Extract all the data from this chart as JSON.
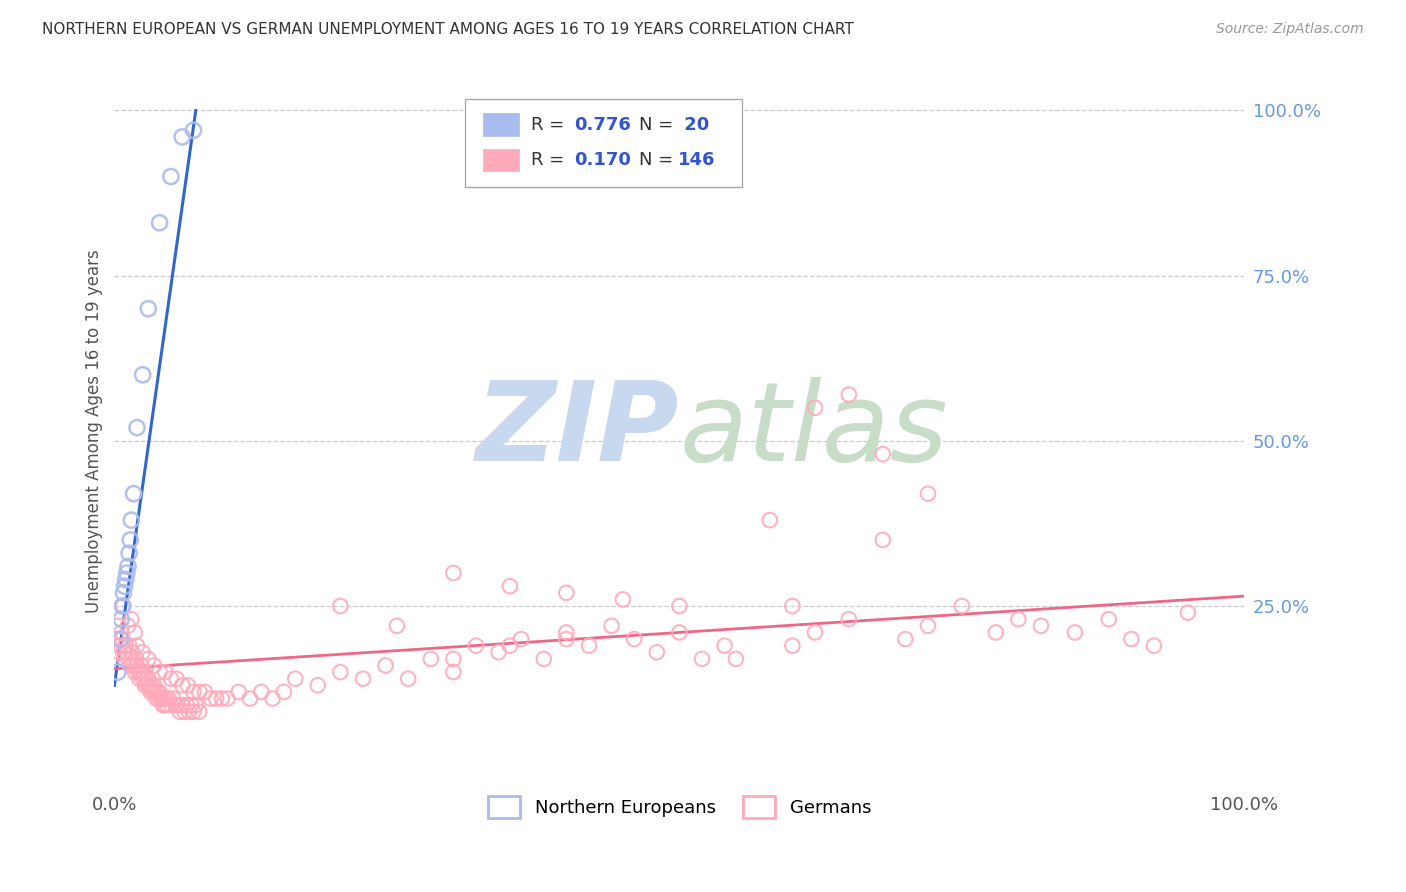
{
  "title": "NORTHERN EUROPEAN VS GERMAN UNEMPLOYMENT AMONG AGES 16 TO 19 YEARS CORRELATION CHART",
  "source": "Source: ZipAtlas.com",
  "ylabel": "Unemployment Among Ages 16 to 19 years",
  "xlim": [
    0,
    1
  ],
  "ylim": [
    -0.02,
    1.05
  ],
  "blue_scatter_color": "#aabbee",
  "blue_line_color": "#3366cc",
  "pink_scatter_color": "#ffaabb",
  "pink_line_color": "#ee6688",
  "grid_color": "#cccccc",
  "background_color": "#ffffff",
  "title_color": "#333333",
  "right_axis_color": "#6699dd",
  "legend_text_color": "#333333",
  "legend_value_color": "#3355cc",
  "watermark_zip_color": "#c8d8ee",
  "watermark_atlas_color": "#c8ddc8",
  "ne_x": [
    0.003,
    0.005,
    0.006,
    0.007,
    0.008,
    0.009,
    0.01,
    0.011,
    0.012,
    0.013,
    0.014,
    0.015,
    0.017,
    0.02,
    0.025,
    0.03,
    0.04,
    0.05,
    0.06,
    0.07
  ],
  "ne_y": [
    0.15,
    0.2,
    0.23,
    0.25,
    0.27,
    0.28,
    0.29,
    0.3,
    0.31,
    0.33,
    0.35,
    0.38,
    0.42,
    0.52,
    0.6,
    0.7,
    0.83,
    0.9,
    0.96,
    0.97
  ],
  "ne_trend_x": [
    0.0,
    0.072
  ],
  "ne_trend_y": [
    0.13,
    1.0
  ],
  "pink_trend_x": [
    0.0,
    1.0
  ],
  "pink_trend_y": [
    0.155,
    0.265
  ],
  "german_x_low": [
    0.002,
    0.003,
    0.004,
    0.005,
    0.006,
    0.007,
    0.008,
    0.009,
    0.01,
    0.011,
    0.012,
    0.013,
    0.014,
    0.015,
    0.016,
    0.017,
    0.018,
    0.019,
    0.02,
    0.021,
    0.022,
    0.023,
    0.024,
    0.025,
    0.026,
    0.027,
    0.028,
    0.029,
    0.03,
    0.031,
    0.032,
    0.033,
    0.034,
    0.035,
    0.036,
    0.037,
    0.038,
    0.039,
    0.04,
    0.041,
    0.042,
    0.043,
    0.044,
    0.045,
    0.046,
    0.047,
    0.048,
    0.05,
    0.052,
    0.054,
    0.056,
    0.058,
    0.06,
    0.062,
    0.064,
    0.066,
    0.068,
    0.07,
    0.072,
    0.075,
    0.008,
    0.012,
    0.015,
    0.018,
    0.02,
    0.025,
    0.03,
    0.035,
    0.04,
    0.045,
    0.05,
    0.055,
    0.06,
    0.065,
    0.07,
    0.075,
    0.08,
    0.085,
    0.09,
    0.095,
    0.1,
    0.11,
    0.12,
    0.13,
    0.14,
    0.15
  ],
  "german_y_low": [
    0.2,
    0.22,
    0.18,
    0.19,
    0.21,
    0.2,
    0.18,
    0.17,
    0.19,
    0.18,
    0.17,
    0.19,
    0.16,
    0.17,
    0.18,
    0.16,
    0.15,
    0.17,
    0.16,
    0.15,
    0.14,
    0.15,
    0.16,
    0.14,
    0.15,
    0.13,
    0.14,
    0.13,
    0.14,
    0.13,
    0.12,
    0.13,
    0.12,
    0.13,
    0.12,
    0.11,
    0.12,
    0.11,
    0.12,
    0.11,
    0.11,
    0.1,
    0.11,
    0.1,
    0.11,
    0.1,
    0.11,
    0.1,
    0.11,
    0.1,
    0.1,
    0.09,
    0.1,
    0.09,
    0.1,
    0.09,
    0.1,
    0.09,
    0.1,
    0.09,
    0.25,
    0.22,
    0.23,
    0.21,
    0.19,
    0.18,
    0.17,
    0.16,
    0.15,
    0.15,
    0.14,
    0.14,
    0.13,
    0.13,
    0.12,
    0.12,
    0.12,
    0.11,
    0.11,
    0.11,
    0.11,
    0.12,
    0.11,
    0.12,
    0.11,
    0.12
  ],
  "german_x_mid": [
    0.16,
    0.18,
    0.2,
    0.22,
    0.24,
    0.26,
    0.28,
    0.3,
    0.32,
    0.34,
    0.36,
    0.38,
    0.4,
    0.42,
    0.44,
    0.46,
    0.48,
    0.5,
    0.52,
    0.54,
    0.2,
    0.25,
    0.3,
    0.35,
    0.4,
    0.45,
    0.5,
    0.3,
    0.35,
    0.4
  ],
  "german_y_mid": [
    0.14,
    0.13,
    0.15,
    0.14,
    0.16,
    0.14,
    0.17,
    0.15,
    0.19,
    0.18,
    0.2,
    0.17,
    0.21,
    0.19,
    0.22,
    0.2,
    0.18,
    0.21,
    0.17,
    0.19,
    0.25,
    0.22,
    0.3,
    0.28,
    0.27,
    0.26,
    0.25,
    0.17,
    0.19,
    0.2
  ],
  "german_x_high": [
    0.55,
    0.6,
    0.62,
    0.65,
    0.68,
    0.7,
    0.72,
    0.75,
    0.78,
    0.8,
    0.82,
    0.85,
    0.88,
    0.9,
    0.92,
    0.95,
    0.62,
    0.65,
    0.68,
    0.72,
    0.58,
    0.6
  ],
  "german_y_high": [
    0.17,
    0.19,
    0.21,
    0.23,
    0.35,
    0.2,
    0.22,
    0.25,
    0.21,
    0.23,
    0.22,
    0.21,
    0.23,
    0.2,
    0.19,
    0.24,
    0.55,
    0.57,
    0.48,
    0.42,
    0.38,
    0.25
  ]
}
